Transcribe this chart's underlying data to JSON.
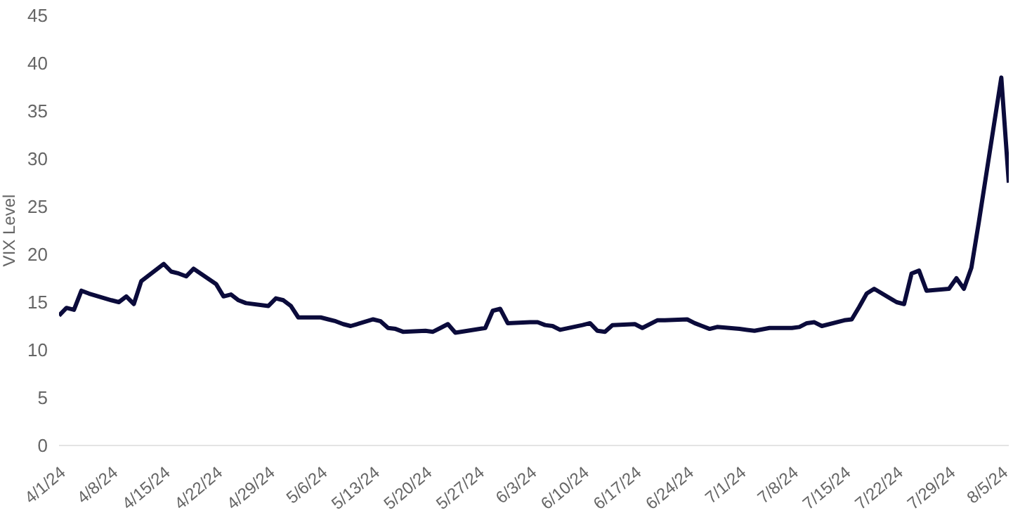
{
  "chart_data": {
    "type": "line",
    "ylabel": "VIX Level",
    "marker": "none",
    "line_style": "solid",
    "x": [
      "--04-01",
      "--04-02",
      "--04-03",
      "--04-04",
      "--04-05",
      "--04-08",
      "--04-09",
      "--04-10",
      "--04-11",
      "--04-12",
      "--04-15",
      "--04-16",
      "--04-17",
      "--04-18",
      "--04-19",
      "--04-22",
      "--04-23",
      "--04-24",
      "--04-25",
      "--04-26",
      "--04-29",
      "--04-30",
      "--05-01",
      "--05-02",
      "--05-03",
      "--05-06",
      "--05-07",
      "--05-08",
      "--05-09",
      "--05-10",
      "--05-13",
      "--05-14",
      "--05-15",
      "--05-16",
      "--05-17",
      "--05-20",
      "--05-21",
      "--05-22",
      "--05-23",
      "--05-24",
      "--05-28",
      "--05-29",
      "--05-30",
      "--05-31",
      "--06-03",
      "--06-04",
      "--06-05",
      "--06-06",
      "--06-07",
      "--06-10",
      "--06-11",
      "--06-12",
      "--06-13",
      "--06-14",
      "--06-17",
      "--06-18",
      "--06-20",
      "--06-21",
      "--06-24",
      "--06-25",
      "--06-26",
      "--06-27",
      "--06-28",
      "--07-01",
      "--07-02",
      "--07-03",
      "--07-05",
      "--07-08",
      "--07-09",
      "--07-10",
      "--07-11",
      "--07-12",
      "--07-15",
      "--07-16",
      "--07-17",
      "--07-18",
      "--07-19",
      "--07-22",
      "--07-23",
      "--07-24",
      "--07-25",
      "--07-26",
      "--07-29",
      "--07-30",
      "--07-31",
      "--08-01",
      "--08-02",
      "--08-05",
      "--08-06"
    ],
    "series": [
      {
        "color": "#0b0b3b",
        "values": [
          13.6,
          14.4,
          14.2,
          16.2,
          15.9,
          15.2,
          15.0,
          15.6,
          14.8,
          17.2,
          19.0,
          18.2,
          18.0,
          17.7,
          18.5,
          16.9,
          15.6,
          15.8,
          15.2,
          14.9,
          14.6,
          15.4,
          15.2,
          14.6,
          13.4,
          13.4,
          13.2,
          13.0,
          12.7,
          12.5,
          13.2,
          13.0,
          12.3,
          12.2,
          11.9,
          12.0,
          11.9,
          12.3,
          12.7,
          11.8,
          12.3,
          14.1,
          14.3,
          12.8,
          12.9,
          12.9,
          12.6,
          12.5,
          12.1,
          12.6,
          12.8,
          12.0,
          11.9,
          12.6,
          12.7,
          12.3,
          13.1,
          13.1,
          13.2,
          12.8,
          12.5,
          12.2,
          12.4,
          12.2,
          12.1,
          12.0,
          12.3,
          12.3,
          12.4,
          12.8,
          12.9,
          12.5,
          13.1,
          13.2,
          14.5,
          15.9,
          16.4,
          15.0,
          14.8,
          18.0,
          18.3,
          16.2,
          16.4,
          17.5,
          16.4,
          18.6,
          23.4,
          38.5,
          27.5
        ]
      }
    ],
    "xlim": [
      "--04-01",
      "--08-06"
    ],
    "ylim": [
      0,
      45
    ],
    "yticks": [
      0,
      5,
      10,
      15,
      20,
      25,
      30,
      35,
      40,
      45
    ],
    "xticks": [
      {
        "value": "--04-01",
        "label": "4/1/24"
      },
      {
        "value": "--04-08",
        "label": "4/8/24"
      },
      {
        "value": "--04-15",
        "label": "4/15/24"
      },
      {
        "value": "--04-22",
        "label": "4/22/24"
      },
      {
        "value": "--04-29",
        "label": "4/29/24"
      },
      {
        "value": "--05-06",
        "label": "5/6/24"
      },
      {
        "value": "--05-13",
        "label": "5/13/24"
      },
      {
        "value": "--05-20",
        "label": "5/20/24"
      },
      {
        "value": "--05-27",
        "label": "5/27/24"
      },
      {
        "value": "--06-03",
        "label": "6/3/24"
      },
      {
        "value": "--06-10",
        "label": "6/10/24"
      },
      {
        "value": "--06-17",
        "label": "6/17/24"
      },
      {
        "value": "--06-24",
        "label": "6/24/24"
      },
      {
        "value": "--07-01",
        "label": "7/1/24"
      },
      {
        "value": "--07-08",
        "label": "7/8/24"
      },
      {
        "value": "--07-15",
        "label": "7/15/24"
      },
      {
        "value": "--07-22",
        "label": "7/22/24"
      },
      {
        "value": "--07-29",
        "label": "7/29/24"
      },
      {
        "value": "--08-05",
        "label": "8/5/24"
      }
    ]
  }
}
